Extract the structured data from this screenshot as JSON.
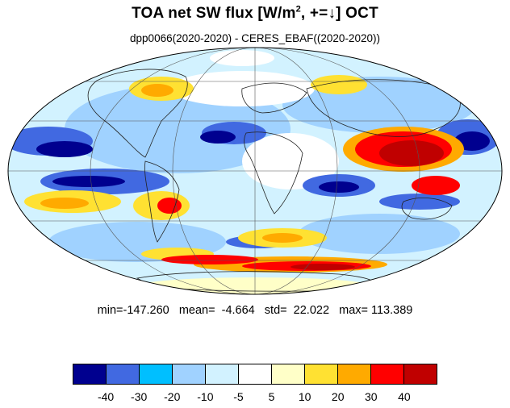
{
  "title": {
    "main": "TOA net SW flux [W/m",
    "sup": "2",
    "rest": ", +=↓]  OCT"
  },
  "subtitle": "dpp0066(2020-2020) - CERES_EBAF((2020-2020))",
  "stats": {
    "text": "min=-147.260   mean=  -4.664   std=  22.022   max= 113.389"
  },
  "colorbar": {
    "colors": [
      "#00008f",
      "#4169e1",
      "#00bfff",
      "#a0d2ff",
      "#d2f2ff",
      "#ffffff",
      "#ffffc8",
      "#ffe132",
      "#ffaa00",
      "#ff0000",
      "#c00000"
    ],
    "labels": [
      "-40",
      "-30",
      "-20",
      "-10",
      "-5",
      "5",
      "10",
      "20",
      "30",
      "40"
    ]
  }
}
